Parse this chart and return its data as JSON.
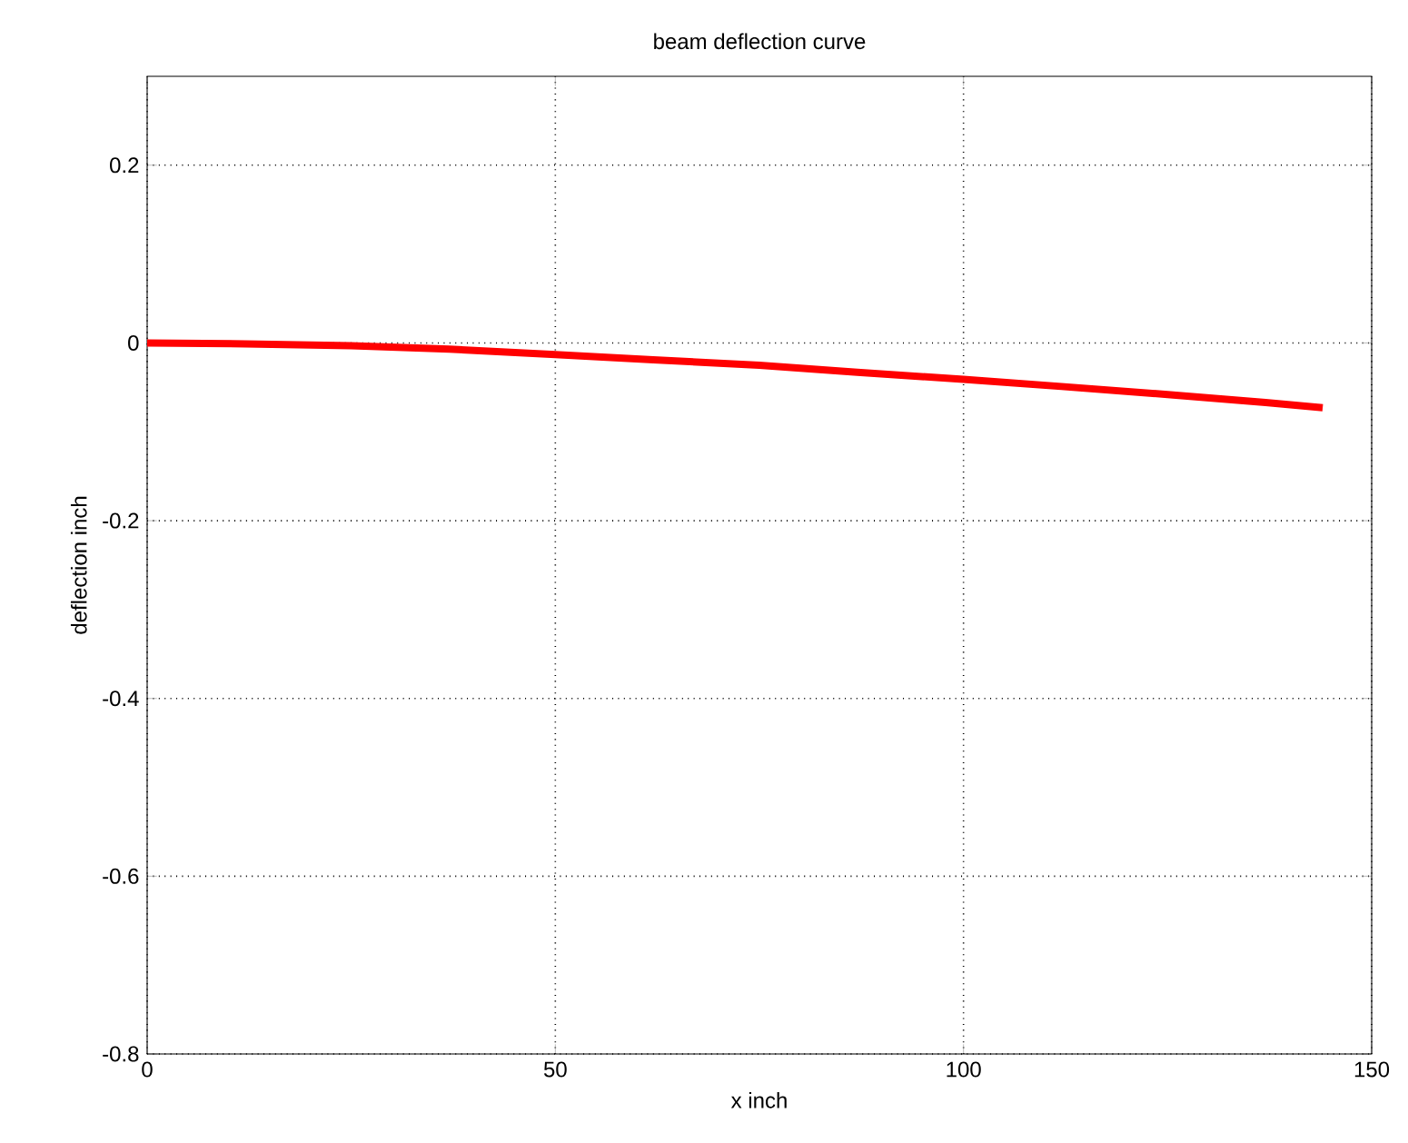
{
  "chart_data": {
    "type": "line",
    "title": "beam deflection curve",
    "xlabel": "x inch",
    "ylabel": "deflection inch",
    "x": [
      0,
      12,
      25,
      37,
      50,
      62,
      75,
      87,
      100,
      112,
      125,
      137,
      144
    ],
    "series": [
      {
        "color": "#ff0000",
        "values": [
          0,
          -0.001,
          -0.003,
          -0.007,
          -0.013,
          -0.019,
          -0.025,
          -0.033,
          -0.041,
          -0.049,
          -0.058,
          -0.067,
          -0.073
        ]
      }
    ],
    "xlim": [
      0,
      150
    ],
    "ylim": [
      -0.8,
      0.3
    ],
    "xticks": [
      0,
      50,
      100,
      150
    ],
    "yticks": [
      -0.8,
      -0.6,
      -0.4,
      -0.2,
      0,
      0.2
    ],
    "grid": true,
    "marker": "none",
    "line_style": "solid"
  }
}
